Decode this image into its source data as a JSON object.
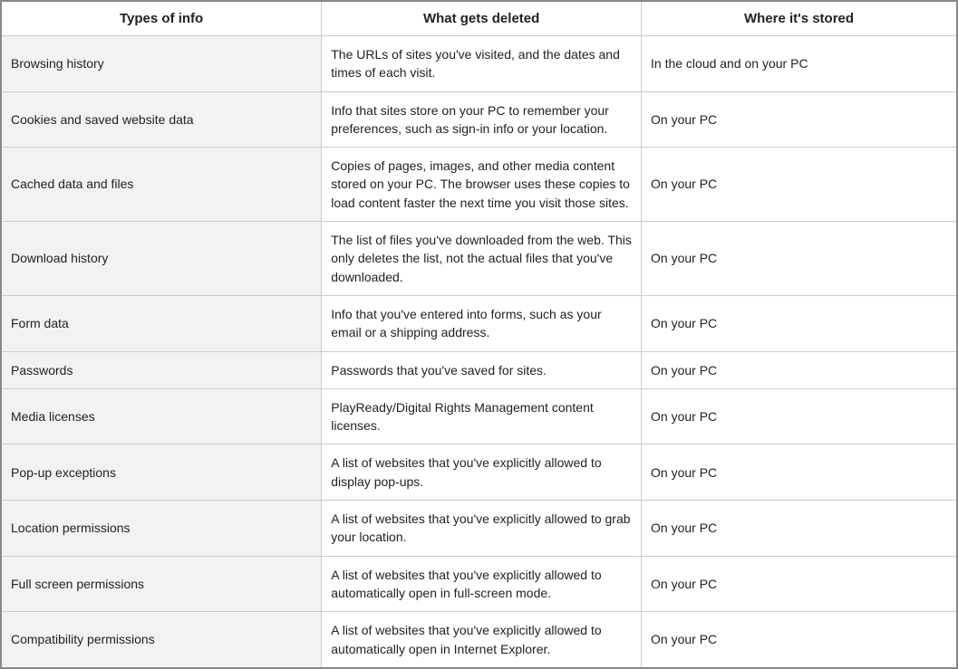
{
  "table": {
    "columns": [
      {
        "label": "Types of info"
      },
      {
        "label": "What gets deleted"
      },
      {
        "label": "Where it's stored"
      }
    ],
    "column_styles": {
      "header_bg": "#ffffff",
      "type_col_bg": "#f2f2f2",
      "border_color": "#cccccc",
      "outer_border_color": "#888888",
      "font_family": "Segoe UI",
      "font_size_body": 14,
      "font_size_header": 15
    },
    "rows": [
      {
        "type": "Browsing history",
        "deleted": "The URLs of sites you've visited, and the dates and times of each visit.",
        "stored": "In the cloud and on your PC"
      },
      {
        "type": "Cookies and saved website data",
        "deleted": "Info that sites store on your PC to remember your preferences, such as sign-in info or your location.",
        "stored": "On your PC"
      },
      {
        "type": "Cached data and files",
        "deleted": "Copies of pages, images, and other media content stored on your PC. The browser uses these copies to load content faster the next time you visit those sites.",
        "stored": "On your PC"
      },
      {
        "type": "Download history",
        "deleted": "The list of files you've downloaded from the web. This only deletes the list, not the actual files that you've downloaded.",
        "stored": "On your PC"
      },
      {
        "type": "Form data",
        "deleted": "Info that you've entered into forms, such as your email or a shipping address.",
        "stored": "On your PC"
      },
      {
        "type": "Passwords",
        "deleted": "Passwords that you've saved for sites.",
        "stored": "On your PC"
      },
      {
        "type": "Media licenses",
        "deleted": "PlayReady/Digital Rights Management content licenses.",
        "stored": "On your PC"
      },
      {
        "type": "Pop-up exceptions",
        "deleted": "A list of websites that you've explicitly allowed to display pop-ups.",
        "stored": "On your PC"
      },
      {
        "type": "Location permissions",
        "deleted": "A list of websites that you've explicitly allowed to grab your location.",
        "stored": "On your PC"
      },
      {
        "type": "Full screen permissions",
        "deleted": "A list of websites that you've explicitly allowed to automatically open in full-screen mode.",
        "stored": "On your PC"
      },
      {
        "type": "Compatibility permissions",
        "deleted": "A list of websites that you've explicitly allowed to automatically open in Internet Explorer.",
        "stored": "On your PC"
      }
    ]
  }
}
